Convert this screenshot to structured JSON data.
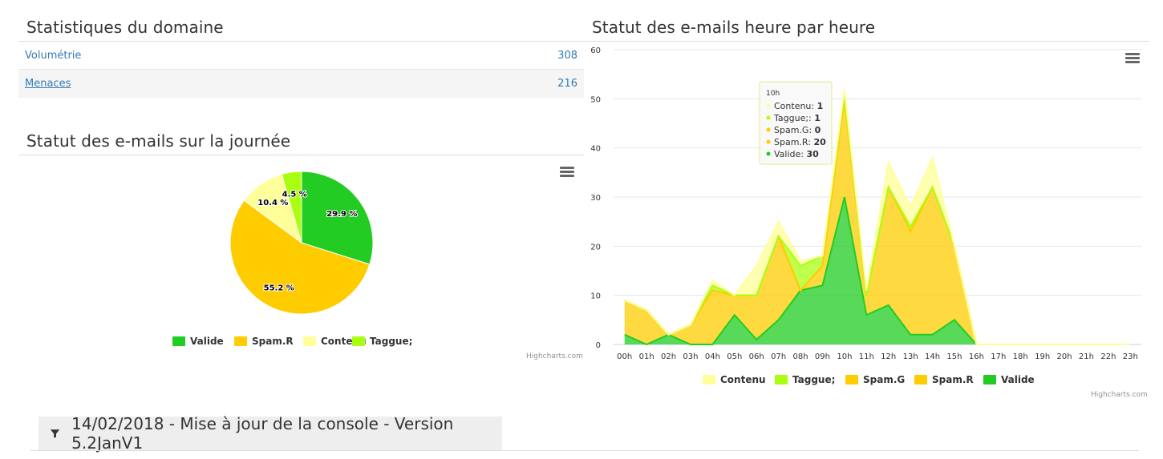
{
  "stats": {
    "title": "Statistiques du domaine",
    "rows": [
      {
        "label": "Volumétrie",
        "value": "308"
      },
      {
        "label": "Menaces",
        "value": "216"
      }
    ]
  },
  "news": {
    "text": "14/02/2018 - Mise à jour de la console - Version 5.2JanV1",
    "icon": "funnel-icon"
  },
  "credits": "Highcharts.com",
  "chart_data": [
    {
      "type": "pie",
      "title": "Statut des e-mails sur la journée",
      "legend_position": "bottom",
      "slices": [
        {
          "name": "Valide",
          "value": 29.9,
          "label": "29.9 %",
          "color": "#22cc22"
        },
        {
          "name": "Spam.R",
          "value": 55.2,
          "label": "55.2 %",
          "color": "#ffcc00"
        },
        {
          "name": "Contenu",
          "value": 10.4,
          "label": "10.4 %",
          "color": "#ffff99"
        },
        {
          "name": "Taggue;",
          "value": 4.5,
          "label": "4.5 %",
          "color": "#aaff11"
        }
      ]
    },
    {
      "type": "area",
      "stacking": "normal",
      "title": "Statut des e-mails heure par heure",
      "categories": [
        "00h",
        "01h",
        "02h",
        "03h",
        "04h",
        "05h",
        "06h",
        "07h",
        "08h",
        "09h",
        "10h",
        "11h",
        "12h",
        "13h",
        "14h",
        "15h",
        "16h",
        "17h",
        "18h",
        "19h",
        "20h",
        "21h",
        "22h",
        "23h"
      ],
      "ylim": [
        0,
        60
      ],
      "yticks": [
        0,
        10,
        20,
        30,
        40,
        50,
        60
      ],
      "grid": true,
      "legend_position": "bottom",
      "series": [
        {
          "name": "Contenu",
          "color": "#ffff99",
          "values": [
            0,
            0,
            0,
            0,
            1,
            0,
            6,
            3,
            1,
            0,
            1,
            1,
            5,
            4,
            6,
            0,
            0,
            0,
            0,
            0,
            0,
            0,
            0,
            0
          ]
        },
        {
          "name": "Taggue;",
          "color": "#aaff11",
          "values": [
            0,
            0,
            0,
            0,
            1,
            0,
            0,
            0,
            5,
            2,
            1,
            0,
            0,
            1,
            0,
            0,
            0,
            0,
            0,
            0,
            0,
            0,
            0,
            0
          ]
        },
        {
          "name": "Spam.G",
          "color": "#ffcc00",
          "values": [
            0,
            0,
            0,
            0,
            0,
            0,
            0,
            0,
            0,
            0,
            0,
            0,
            0,
            0,
            0,
            0,
            0,
            0,
            0,
            0,
            0,
            0,
            0,
            0
          ]
        },
        {
          "name": "Spam.R",
          "color": "#ffcc00",
          "values": [
            7,
            7,
            0,
            4,
            11,
            4,
            9,
            17,
            0,
            4,
            20,
            4,
            24,
            21,
            30,
            15,
            0,
            0,
            0,
            0,
            0,
            0,
            0,
            0
          ]
        },
        {
          "name": "Valide",
          "color": "#22cc22",
          "values": [
            2,
            0,
            2,
            0,
            0,
            6,
            1,
            5,
            11,
            12,
            30,
            6,
            8,
            2,
            2,
            5,
            0,
            0,
            0,
            0,
            0,
            0,
            0,
            0
          ]
        }
      ],
      "tooltip": {
        "header": "10h",
        "rows": [
          {
            "name": "Contenu",
            "value": "1",
            "color": "#ffff99"
          },
          {
            "name": "Taggue;",
            "value": "1",
            "color": "#aaff11"
          },
          {
            "name": "Spam.G",
            "value": "0",
            "color": "#ffcc00"
          },
          {
            "name": "Spam.R",
            "value": "20",
            "color": "#ffcc00"
          },
          {
            "name": "Valide",
            "value": "30",
            "color": "#22cc22"
          }
        ]
      }
    }
  ]
}
